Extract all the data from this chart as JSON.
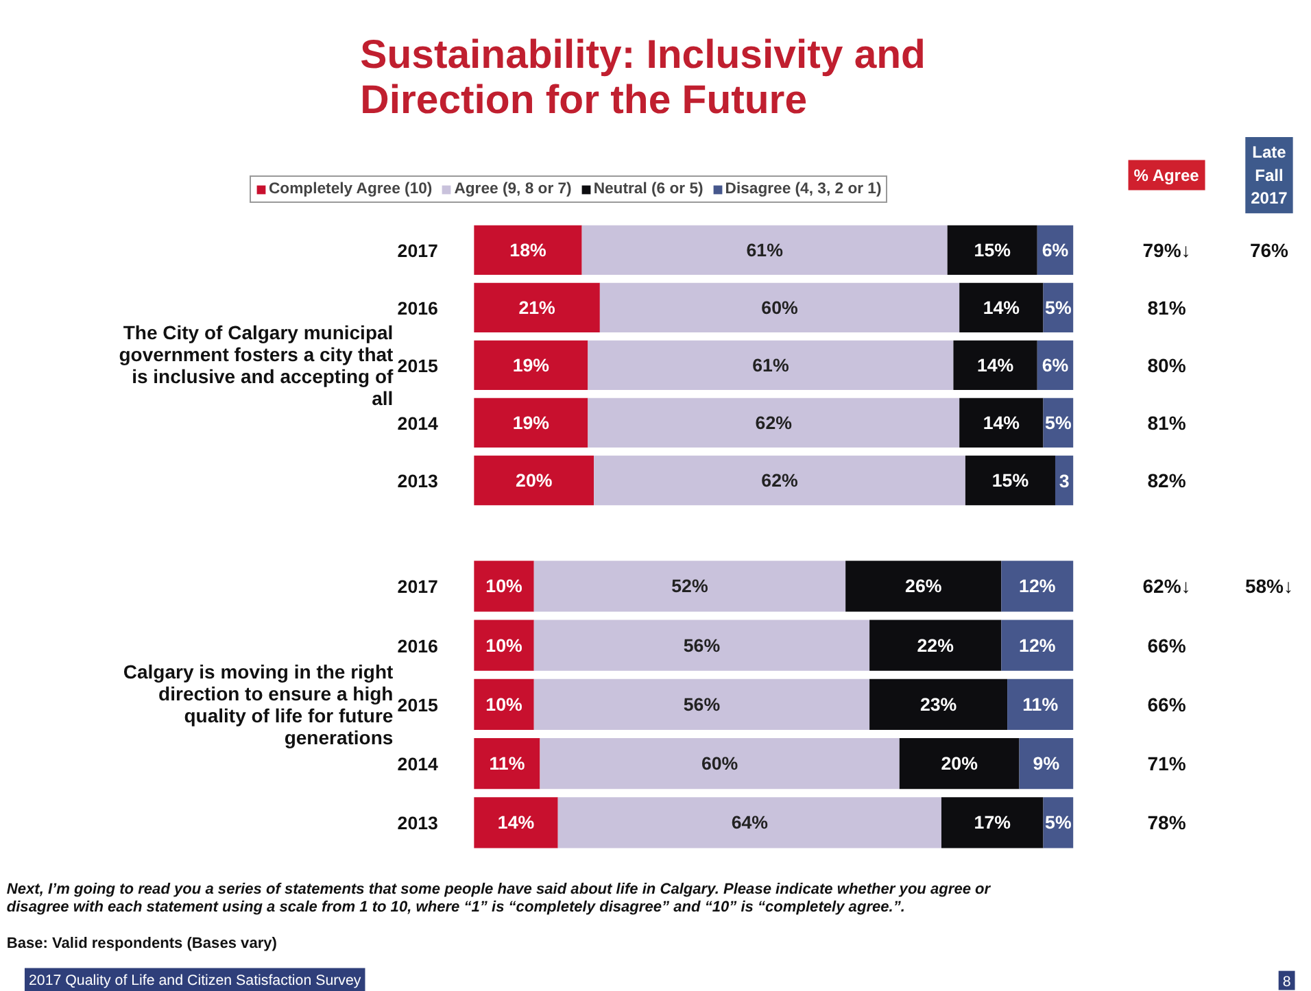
{
  "chart_data": [
    {
      "type": "bar",
      "orientation": "horizontal",
      "stacked": true,
      "title": "Sustainability: Inclusivity and Direction for the Future",
      "ylabel": "The City of Calgary municipal government fosters a city that is inclusive and accepting of all",
      "categories": [
        "2017",
        "2016",
        "2015",
        "2014",
        "2013"
      ],
      "legend": "top",
      "series": [
        {
          "name": "Completely Agree (10)",
          "color": "#c8102e",
          "values": [
            18,
            21,
            19,
            19,
            20
          ],
          "value_labels": [
            "18%",
            "21%",
            "19%",
            "19%",
            "20%"
          ]
        },
        {
          "name": "Agree (9, 8 or 7)",
          "color": "#c9c2dc",
          "values": [
            61,
            60,
            61,
            62,
            62
          ],
          "value_labels": [
            "61%",
            "60%",
            "61%",
            "62%",
            "62%"
          ]
        },
        {
          "name": "Neutral (6 or 5)",
          "color": "#0d0d10",
          "values": [
            15,
            14,
            14,
            14,
            15
          ],
          "value_labels": [
            "15%",
            "14%",
            "14%",
            "14%",
            "15%"
          ]
        },
        {
          "name": "Disagree (4, 3, 2 or 1)",
          "color": "#46578c",
          "values": [
            6,
            5,
            6,
            5,
            3
          ],
          "value_labels": [
            "6%",
            "5%",
            "6%",
            "5%",
            "3"
          ]
        }
      ],
      "annotations": [
        "% Agree",
        "Late Fall 2017",
        "79%↓",
        "81%",
        "80%",
        "81%",
        "82%",
        "76%"
      ]
    },
    {
      "type": "bar",
      "orientation": "horizontal",
      "stacked": true,
      "ylabel": "Calgary is moving in the right direction to ensure a high quality of life for future generations",
      "categories": [
        "2017",
        "2016",
        "2015",
        "2014",
        "2013"
      ],
      "series": [
        {
          "color": "#c8102e",
          "values": [
            10,
            10,
            10,
            11,
            14
          ],
          "value_labels": [
            "10%",
            "10%",
            "10%",
            "11%",
            "14%"
          ]
        },
        {
          "color": "#c9c2dc",
          "values": [
            52,
            56,
            56,
            60,
            64
          ],
          "value_labels": [
            "52%",
            "56%",
            "56%",
            "60%",
            "64%"
          ]
        },
        {
          "color": "#0d0d10",
          "values": [
            26,
            22,
            23,
            20,
            17
          ],
          "value_labels": [
            "26%",
            "22%",
            "23%",
            "20%",
            "17%"
          ]
        },
        {
          "color": "#46578c",
          "values": [
            12,
            12,
            11,
            9,
            5
          ],
          "value_labels": [
            "12%",
            "12%",
            "11%",
            "9%",
            "5%"
          ]
        }
      ],
      "annotations": [
        "62%↓",
        "66%",
        "66%",
        "71%",
        "78%",
        "58%↓",
        "Next, I’m going to read you a series of statements that some people have said about life in Calgary. Please indicate whether you agree or disagree with each statement using a scale from 1 to 10, where “1” is “completely disagree” and “10” is “completely agree.”.",
        "Base: Valid respondents (Bases vary)",
        "2017 Quality of Life and Citizen Satisfaction Survey",
        "8"
      ]
    }
  ]
}
